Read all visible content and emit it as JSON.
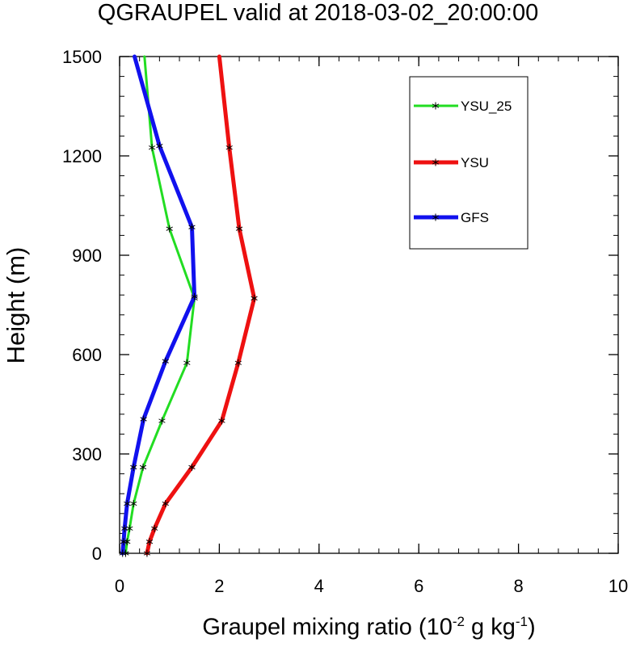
{
  "chart_data": {
    "type": "line",
    "title": "QGRAUPEL valid at 2018-03-02_20:00:00",
    "xlabel": {
      "prefix": "Graupel mixing ratio (10",
      "exp1": "-2",
      "mid": " g kg",
      "exp2": "-1",
      "suffix": ")"
    },
    "ylabel": "Height (m)",
    "xlim": [
      0,
      10
    ],
    "ylim": [
      0,
      1500
    ],
    "xticks": [
      0,
      2,
      4,
      6,
      8,
      10
    ],
    "yticks": [
      0,
      300,
      600,
      900,
      1200,
      1500
    ],
    "x_minor_step": 0.4,
    "y_minor_step": 60,
    "legend_position": "top-right",
    "series": [
      {
        "name": "YSU_25",
        "color": "#22dd22",
        "line_width": 3,
        "points": [
          [
            0.5,
            1500
          ],
          [
            0.65,
            1225
          ],
          [
            1.0,
            980
          ],
          [
            1.5,
            770
          ],
          [
            1.35,
            575
          ],
          [
            0.85,
            400
          ],
          [
            0.47,
            260
          ],
          [
            0.28,
            150
          ],
          [
            0.2,
            75
          ],
          [
            0.15,
            35
          ],
          [
            0.12,
            0
          ]
        ]
      },
      {
        "name": "YSU",
        "color": "#ee1111",
        "line_width": 5,
        "points": [
          [
            2.0,
            1500
          ],
          [
            2.2,
            1225
          ],
          [
            2.4,
            980
          ],
          [
            2.7,
            770
          ],
          [
            2.38,
            575
          ],
          [
            2.05,
            400
          ],
          [
            1.45,
            260
          ],
          [
            0.92,
            150
          ],
          [
            0.7,
            75
          ],
          [
            0.6,
            35
          ],
          [
            0.55,
            0
          ]
        ]
      },
      {
        "name": "GFS",
        "color": "#1111ee",
        "line_width": 5,
        "points": [
          [
            0.3,
            1500
          ],
          [
            0.8,
            1230
          ],
          [
            1.45,
            985
          ],
          [
            1.5,
            775
          ],
          [
            0.92,
            580
          ],
          [
            0.48,
            405
          ],
          [
            0.28,
            260
          ],
          [
            0.15,
            150
          ],
          [
            0.1,
            75
          ],
          [
            0.08,
            35
          ],
          [
            0.06,
            0
          ]
        ]
      }
    ]
  }
}
